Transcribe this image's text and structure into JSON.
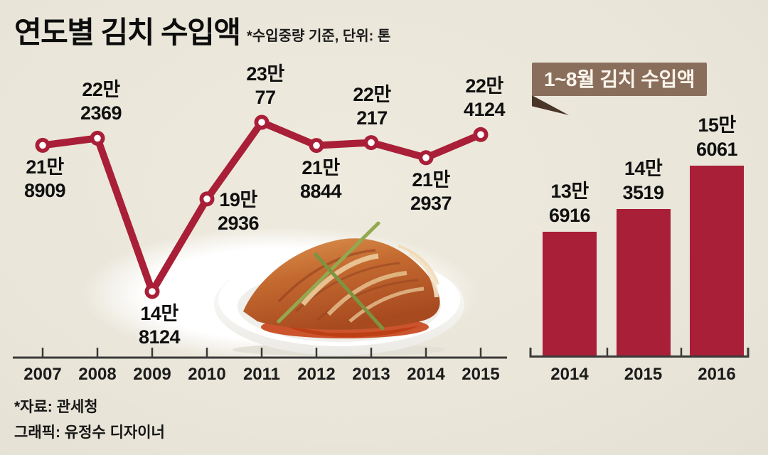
{
  "page": {
    "title": "연도별 김치 수입액",
    "subtitle": "*수입중량 기준, 단위: 톤",
    "source": "*자료: 관세청",
    "credit": "그래픽: 유정수 디자이너",
    "colors": {
      "accent": "#a81f37",
      "banner": "#8a6e5c",
      "banner_fold": "#4a3529",
      "background": "#e9e5d9",
      "axis": "#3a3a38",
      "text": "#101010"
    }
  },
  "chart_data": [
    {
      "type": "line",
      "title": "연도별 김치 수입액",
      "note": "*수입중량 기준, 단위: 톤",
      "unit": "톤",
      "categories": [
        "2007",
        "2008",
        "2009",
        "2010",
        "2011",
        "2012",
        "2013",
        "2014",
        "2015"
      ],
      "values": [
        218909,
        222369,
        148124,
        192936,
        230077,
        218844,
        220217,
        212937,
        224124
      ],
      "point_labels": [
        [
          "21만",
          "8909"
        ],
        [
          "22만",
          "2369"
        ],
        [
          "14만",
          "8124"
        ],
        [
          "19만",
          "2936"
        ],
        [
          "23만",
          "77"
        ],
        [
          "21만",
          "8844"
        ],
        [
          "22만",
          "217"
        ],
        [
          "21만",
          "2937"
        ],
        [
          "22만",
          "4124"
        ]
      ],
      "ylim": [
        148124,
        230077
      ],
      "grid": false,
      "legend": "none",
      "marker": "open-circle"
    },
    {
      "type": "bar",
      "title": "1~8월 김치 수입액",
      "unit": "톤",
      "categories": [
        "2014",
        "2015",
        "2016"
      ],
      "values": [
        136916,
        143519,
        156061
      ],
      "bar_labels": [
        [
          "13만",
          "6916"
        ],
        [
          "14만",
          "3519"
        ],
        [
          "15만",
          "6061"
        ]
      ],
      "grid": false,
      "legend": "none"
    }
  ]
}
